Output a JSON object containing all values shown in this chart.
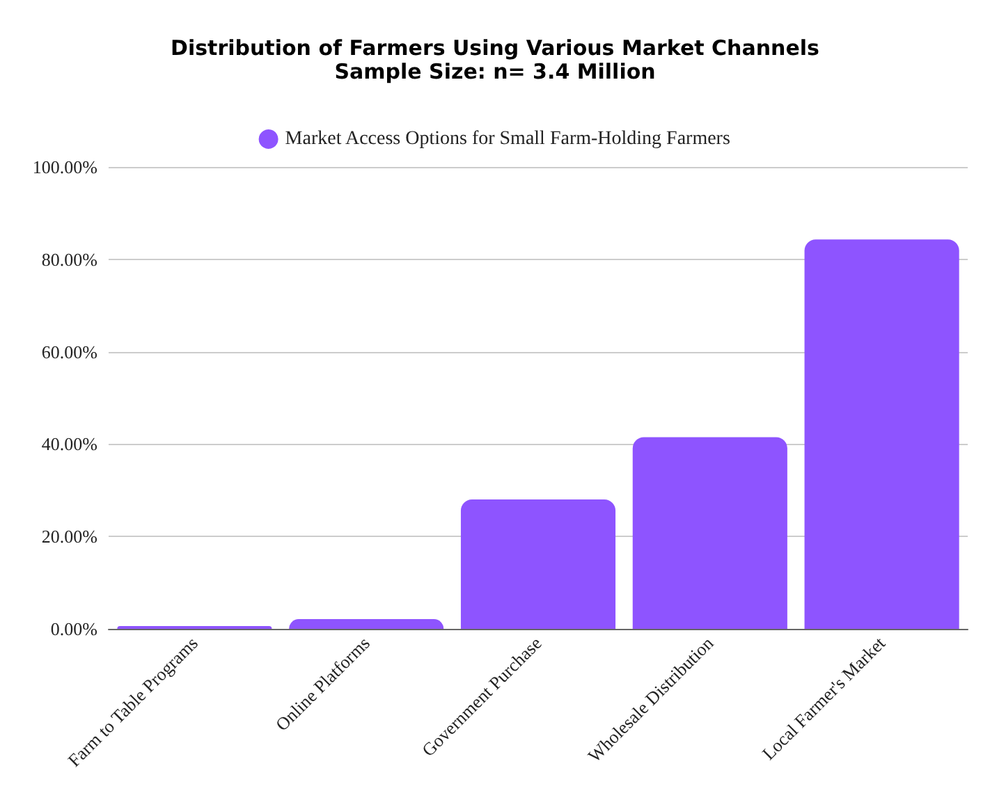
{
  "chart_data": {
    "type": "bar",
    "title": "Distribution of Farmers Using Various Market Channels",
    "subtitle": "Sample Size: n= 3.4 Million",
    "categories": [
      "Farm to Table Programs",
      "Online Platforms",
      "Government Purchase",
      "Wholesale Distribution",
      "Local Farmer's Market"
    ],
    "series": [
      {
        "name": "Market Access Options for Small Farm-Holding Farmers",
        "color": "#8e54ff",
        "values": [
          0.6,
          2.1,
          28,
          41.5,
          84.3
        ]
      }
    ],
    "ylim": [
      0,
      100
    ],
    "yticks": [
      {
        "value": 0,
        "label": "0.00%"
      },
      {
        "value": 20,
        "label": "20.00%"
      },
      {
        "value": 40,
        "label": "40.00%"
      },
      {
        "value": 60,
        "label": "60.00%"
      },
      {
        "value": 80,
        "label": "80.00%"
      },
      {
        "value": 100,
        "label": "100.00%"
      }
    ],
    "grid": "y",
    "legend": "top"
  }
}
